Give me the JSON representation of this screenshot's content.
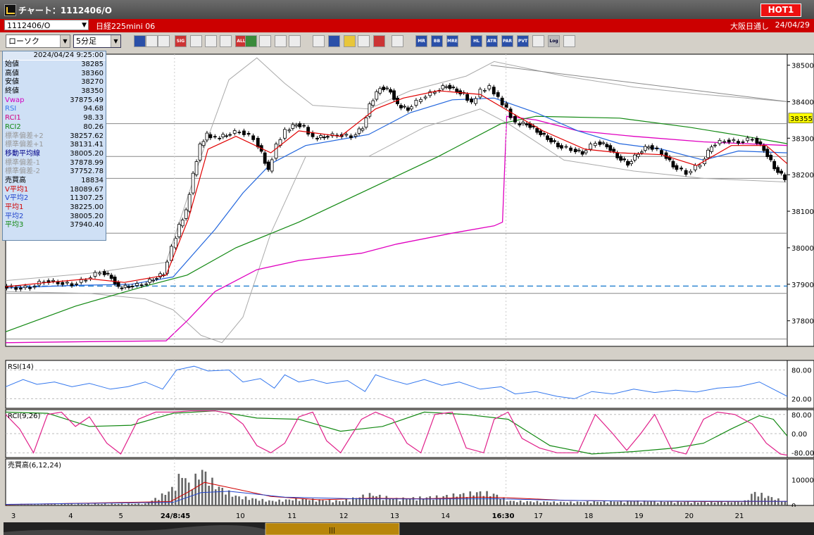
{
  "window": {
    "title": "チャート：1112406/O",
    "hot_label": "HOT1"
  },
  "infobar": {
    "symbol_code": "1112406/O",
    "symbol_name": "日経225mini 06",
    "market": "大阪日通し",
    "date": "24/04/29"
  },
  "toolbar": {
    "chart_type": "ローソク",
    "interval": "5分足",
    "buttons": [
      "zoom",
      "info",
      "data",
      "sig",
      "stamp",
      "cross",
      "vline",
      "all",
      "draw",
      "line",
      "select",
      "arrow",
      "memo",
      "delete",
      "settings",
      "tool",
      "color",
      "volume",
      "MR",
      "BB",
      "MRE",
      "HL",
      "ATR",
      "PAR",
      "PVT",
      "box",
      "Log",
      "export"
    ]
  },
  "colors": {
    "background": "#ffffff",
    "up": "#ffffff",
    "down": "#000000",
    "ma1": "#e00000",
    "ma2": "#2266dd",
    "ma3": "#118811",
    "vwap": "#e000c0",
    "bands": "#aaaaaa",
    "rci1": "#e0208a",
    "rci2": "#118811",
    "rsi": "#3377ee",
    "ref_line": "#1177cc",
    "price_tag": "#ffff00"
  },
  "info_panel": {
    "timestamp": "2024/04/24  9:25:00",
    "rows": [
      {
        "label": "始値",
        "value": "38285",
        "color": "#000000"
      },
      {
        "label": "高値",
        "value": "38360",
        "color": "#000000"
      },
      {
        "label": "安値",
        "value": "38270",
        "color": "#000000"
      },
      {
        "label": "終値",
        "value": "38350",
        "color": "#000000"
      },
      {
        "label": "Vwap",
        "value": "37875.49",
        "color": "#d000c0"
      },
      {
        "label": "RSI",
        "value": "94.68",
        "color": "#3377ee"
      },
      {
        "label": "RCI1",
        "value": "98.33",
        "color": "#d00080"
      },
      {
        "label": "RCI2",
        "value": "80.26",
        "color": "#118811"
      },
      {
        "label": "標準偏差+2",
        "value": "38257.62",
        "color": "#999999"
      },
      {
        "label": "標準偏差+1",
        "value": "38131.41",
        "color": "#999999"
      },
      {
        "label": "移動平均線",
        "value": "38005.20",
        "color": "#000088"
      },
      {
        "label": "標準偏差-1",
        "value": "37878.99",
        "color": "#999999"
      },
      {
        "label": "標準偏差-2",
        "value": "37752.78",
        "color": "#999999"
      },
      {
        "label": "売買高",
        "value": "18834",
        "color": "#000000"
      },
      {
        "label": "V平均1",
        "value": "18089.67",
        "color": "#d00000"
      },
      {
        "label": "V平均2",
        "value": "11307.25",
        "color": "#2244cc"
      },
      {
        "label": "平均1",
        "value": "38225.00",
        "color": "#d00000"
      },
      {
        "label": "平均2",
        "value": "38005.20",
        "color": "#2244cc"
      },
      {
        "label": "平均3",
        "value": "37940.40",
        "color": "#118811"
      }
    ]
  },
  "chart_data": {
    "type": "line",
    "price_axis": {
      "ticks": [
        "38500",
        "38400",
        "38300",
        "38200",
        "38100",
        "38000",
        "37900",
        "37800"
      ],
      "current": "38355",
      "ylim": [
        37730,
        38530
      ]
    },
    "x_ticks": [
      {
        "label": "3",
        "x": 8
      },
      {
        "label": "4",
        "x": 90
      },
      {
        "label": "5",
        "x": 162
      },
      {
        "label": "24/8:45",
        "x": 242
      },
      {
        "label": "10",
        "x": 330
      },
      {
        "label": "11",
        "x": 404
      },
      {
        "label": "12",
        "x": 478
      },
      {
        "label": "13",
        "x": 551
      },
      {
        "label": "14",
        "x": 624
      },
      {
        "label": "16:30",
        "x": 717
      },
      {
        "label": "17",
        "x": 757
      },
      {
        "label": "18",
        "x": 829
      },
      {
        "label": "19",
        "x": 901
      },
      {
        "label": "20",
        "x": 973
      },
      {
        "label": "21",
        "x": 1045
      }
    ],
    "x_range": [
      0,
      1120
    ],
    "reference_line": 37895,
    "price": [
      [
        0,
        37895
      ],
      [
        20,
        37890
      ],
      [
        40,
        37892
      ],
      [
        60,
        37910
      ],
      [
        80,
        37905
      ],
      [
        100,
        37900
      ],
      [
        120,
        37915
      ],
      [
        140,
        37935
      ],
      [
        155,
        37920
      ],
      [
        165,
        37890
      ],
      [
        180,
        37895
      ],
      [
        200,
        37900
      ],
      [
        215,
        37915
      ],
      [
        230,
        37930
      ],
      [
        242,
        38000
      ],
      [
        252,
        38060
      ],
      [
        262,
        38100
      ],
      [
        272,
        38200
      ],
      [
        282,
        38280
      ],
      [
        292,
        38310
      ],
      [
        305,
        38300
      ],
      [
        320,
        38310
      ],
      [
        340,
        38320
      ],
      [
        360,
        38300
      ],
      [
        370,
        38260
      ],
      [
        380,
        38210
      ],
      [
        392,
        38280
      ],
      [
        405,
        38320
      ],
      [
        420,
        38340
      ],
      [
        432,
        38330
      ],
      [
        445,
        38300
      ],
      [
        460,
        38305
      ],
      [
        480,
        38310
      ],
      [
        500,
        38305
      ],
      [
        515,
        38330
      ],
      [
        525,
        38390
      ],
      [
        540,
        38440
      ],
      [
        555,
        38430
      ],
      [
        565,
        38390
      ],
      [
        580,
        38380
      ],
      [
        600,
        38410
      ],
      [
        620,
        38430
      ],
      [
        635,
        38445
      ],
      [
        650,
        38430
      ],
      [
        660,
        38420
      ],
      [
        672,
        38395
      ],
      [
        685,
        38430
      ],
      [
        698,
        38440
      ],
      [
        710,
        38410
      ],
      [
        722,
        38380
      ],
      [
        735,
        38340
      ],
      [
        750,
        38340
      ],
      [
        765,
        38320
      ],
      [
        780,
        38300
      ],
      [
        795,
        38280
      ],
      [
        815,
        38270
      ],
      [
        830,
        38260
      ],
      [
        850,
        38290
      ],
      [
        865,
        38280
      ],
      [
        880,
        38250
      ],
      [
        895,
        38230
      ],
      [
        910,
        38260
      ],
      [
        925,
        38280
      ],
      [
        945,
        38260
      ],
      [
        960,
        38225
      ],
      [
        980,
        38205
      ],
      [
        1000,
        38230
      ],
      [
        1015,
        38280
      ],
      [
        1035,
        38295
      ],
      [
        1055,
        38290
      ],
      [
        1075,
        38300
      ],
      [
        1090,
        38270
      ],
      [
        1105,
        38220
      ],
      [
        1120,
        38190
      ]
    ],
    "ma1": [
      [
        0,
        37893
      ],
      [
        60,
        37905
      ],
      [
        120,
        37915
      ],
      [
        170,
        37905
      ],
      [
        230,
        37925
      ],
      [
        262,
        38080
      ],
      [
        290,
        38270
      ],
      [
        330,
        38305
      ],
      [
        380,
        38260
      ],
      [
        420,
        38320
      ],
      [
        480,
        38305
      ],
      [
        530,
        38380
      ],
      [
        570,
        38410
      ],
      [
        620,
        38430
      ],
      [
        680,
        38420
      ],
      [
        720,
        38375
      ],
      [
        770,
        38320
      ],
      [
        830,
        38270
      ],
      [
        880,
        38260
      ],
      [
        940,
        38255
      ],
      [
        990,
        38225
      ],
      [
        1040,
        38280
      ],
      [
        1090,
        38280
      ],
      [
        1120,
        38230
      ]
    ],
    "ma2": [
      [
        0,
        37890
      ],
      [
        100,
        37897
      ],
      [
        180,
        37900
      ],
      [
        240,
        37920
      ],
      [
        300,
        38050
      ],
      [
        340,
        38150
      ],
      [
        380,
        38230
      ],
      [
        430,
        38280
      ],
      [
        520,
        38310
      ],
      [
        580,
        38370
      ],
      [
        640,
        38405
      ],
      [
        700,
        38410
      ],
      [
        760,
        38370
      ],
      [
        820,
        38320
      ],
      [
        880,
        38285
      ],
      [
        940,
        38270
      ],
      [
        1000,
        38240
      ],
      [
        1050,
        38265
      ],
      [
        1120,
        38260
      ]
    ],
    "ma3": [
      [
        0,
        37770
      ],
      [
        100,
        37840
      ],
      [
        200,
        37895
      ],
      [
        260,
        37925
      ],
      [
        330,
        38000
      ],
      [
        420,
        38070
      ],
      [
        520,
        38160
      ],
      [
        620,
        38250
      ],
      [
        710,
        38340
      ],
      [
        760,
        38360
      ],
      [
        880,
        38355
      ],
      [
        980,
        38330
      ],
      [
        1060,
        38305
      ],
      [
        1120,
        38285
      ]
    ],
    "vwap": [
      [
        0,
        37740
      ],
      [
        120,
        37743
      ],
      [
        230,
        37745
      ],
      [
        260,
        37800
      ],
      [
        300,
        37880
      ],
      [
        360,
        37940
      ],
      [
        420,
        37965
      ],
      [
        510,
        37985
      ],
      [
        560,
        38010
      ],
      [
        640,
        38040
      ],
      [
        700,
        38060
      ],
      [
        712,
        38070
      ],
      [
        718,
        38360
      ],
      [
        760,
        38350
      ],
      [
        820,
        38320
      ],
      [
        900,
        38305
      ],
      [
        1000,
        38290
      ],
      [
        1120,
        38280
      ]
    ],
    "band_upper": [
      [
        0,
        37910
      ],
      [
        120,
        37930
      ],
      [
        230,
        37960
      ],
      [
        280,
        38250
      ],
      [
        320,
        38460
      ],
      [
        360,
        38520
      ],
      [
        400,
        38450
      ],
      [
        440,
        38390
      ],
      [
        520,
        38380
      ],
      [
        580,
        38430
      ],
      [
        660,
        38470
      ],
      [
        700,
        38510
      ],
      [
        800,
        38470
      ],
      [
        900,
        38440
      ],
      [
        1000,
        38420
      ],
      [
        1120,
        38400
      ]
    ],
    "band_lower": [
      [
        0,
        37880
      ],
      [
        120,
        37875
      ],
      [
        200,
        37860
      ],
      [
        240,
        37830
      ],
      [
        280,
        37760
      ],
      [
        310,
        37740
      ],
      [
        340,
        37810
      ],
      [
        380,
        38040
      ],
      [
        430,
        38250
      ],
      [
        520,
        38250
      ],
      [
        600,
        38330
      ],
      [
        680,
        38380
      ],
      [
        720,
        38340
      ],
      [
        800,
        38240
      ],
      [
        900,
        38210
      ],
      [
        1000,
        38190
      ],
      [
        1120,
        38180
      ]
    ],
    "trend_line": [
      [
        695,
        38500
      ],
      [
        1120,
        38400
      ]
    ],
    "h_levels": [
      38340,
      38250,
      38190,
      38040,
      37875,
      37750
    ],
    "rsi": {
      "label": "RSI(14)",
      "ticks": [
        "80.00",
        "20.00"
      ],
      "ylim": [
        0,
        100
      ],
      "values": [
        [
          0,
          45
        ],
        [
          25,
          60
        ],
        [
          45,
          50
        ],
        [
          70,
          55
        ],
        [
          95,
          45
        ],
        [
          120,
          52
        ],
        [
          150,
          40
        ],
        [
          175,
          45
        ],
        [
          200,
          55
        ],
        [
          225,
          40
        ],
        [
          245,
          80
        ],
        [
          270,
          88
        ],
        [
          290,
          78
        ],
        [
          320,
          80
        ],
        [
          340,
          55
        ],
        [
          365,
          62
        ],
        [
          385,
          42
        ],
        [
          400,
          70
        ],
        [
          420,
          55
        ],
        [
          440,
          60
        ],
        [
          460,
          52
        ],
        [
          490,
          58
        ],
        [
          515,
          35
        ],
        [
          530,
          70
        ],
        [
          550,
          60
        ],
        [
          575,
          50
        ],
        [
          600,
          60
        ],
        [
          625,
          48
        ],
        [
          650,
          55
        ],
        [
          680,
          40
        ],
        [
          710,
          45
        ],
        [
          730,
          30
        ],
        [
          760,
          35
        ],
        [
          790,
          25
        ],
        [
          815,
          20
        ],
        [
          840,
          35
        ],
        [
          870,
          30
        ],
        [
          900,
          40
        ],
        [
          930,
          33
        ],
        [
          960,
          38
        ],
        [
          990,
          34
        ],
        [
          1020,
          42
        ],
        [
          1050,
          45
        ],
        [
          1080,
          55
        ],
        [
          1100,
          40
        ],
        [
          1120,
          25
        ]
      ]
    },
    "rci": {
      "label": "RCI(9,26)",
      "ticks": [
        "80.00",
        "0.00",
        "-80.00"
      ],
      "ylim": [
        -100,
        100
      ],
      "rci1": [
        [
          0,
          80
        ],
        [
          20,
          20
        ],
        [
          40,
          -80
        ],
        [
          60,
          80
        ],
        [
          80,
          90
        ],
        [
          100,
          30
        ],
        [
          120,
          70
        ],
        [
          145,
          -40
        ],
        [
          165,
          -85
        ],
        [
          190,
          60
        ],
        [
          215,
          90
        ],
        [
          240,
          90
        ],
        [
          265,
          95
        ],
        [
          300,
          95
        ],
        [
          320,
          85
        ],
        [
          340,
          40
        ],
        [
          360,
          -50
        ],
        [
          380,
          -80
        ],
        [
          400,
          -40
        ],
        [
          420,
          70
        ],
        [
          440,
          90
        ],
        [
          460,
          -30
        ],
        [
          480,
          -80
        ],
        [
          510,
          60
        ],
        [
          530,
          90
        ],
        [
          555,
          60
        ],
        [
          575,
          -40
        ],
        [
          595,
          -80
        ],
        [
          615,
          80
        ],
        [
          640,
          90
        ],
        [
          660,
          -60
        ],
        [
          685,
          -80
        ],
        [
          700,
          60
        ],
        [
          720,
          90
        ],
        [
          740,
          -20
        ],
        [
          765,
          -60
        ],
        [
          790,
          -80
        ],
        [
          820,
          -80
        ],
        [
          845,
          80
        ],
        [
          870,
          0
        ],
        [
          890,
          -70
        ],
        [
          910,
          0
        ],
        [
          930,
          80
        ],
        [
          955,
          -70
        ],
        [
          975,
          -85
        ],
        [
          1000,
          60
        ],
        [
          1020,
          90
        ],
        [
          1045,
          80
        ],
        [
          1070,
          40
        ],
        [
          1090,
          -40
        ],
        [
          1110,
          -85
        ],
        [
          1120,
          -90
        ]
      ],
      "rci2": [
        [
          0,
          90
        ],
        [
          60,
          85
        ],
        [
          120,
          30
        ],
        [
          180,
          35
        ],
        [
          240,
          85
        ],
        [
          300,
          95
        ],
        [
          360,
          65
        ],
        [
          420,
          60
        ],
        [
          480,
          10
        ],
        [
          540,
          30
        ],
        [
          600,
          90
        ],
        [
          660,
          80
        ],
        [
          720,
          60
        ],
        [
          780,
          -50
        ],
        [
          840,
          -85
        ],
        [
          900,
          -75
        ],
        [
          960,
          -60
        ],
        [
          1000,
          -40
        ],
        [
          1040,
          20
        ],
        [
          1080,
          75
        ],
        [
          1100,
          60
        ],
        [
          1120,
          -10
        ]
      ]
    },
    "volume": {
      "label": "売買高(6,12,24)",
      "ticks": [
        "10000",
        "0"
      ],
      "ylim": [
        0,
        17000
      ]
    }
  }
}
